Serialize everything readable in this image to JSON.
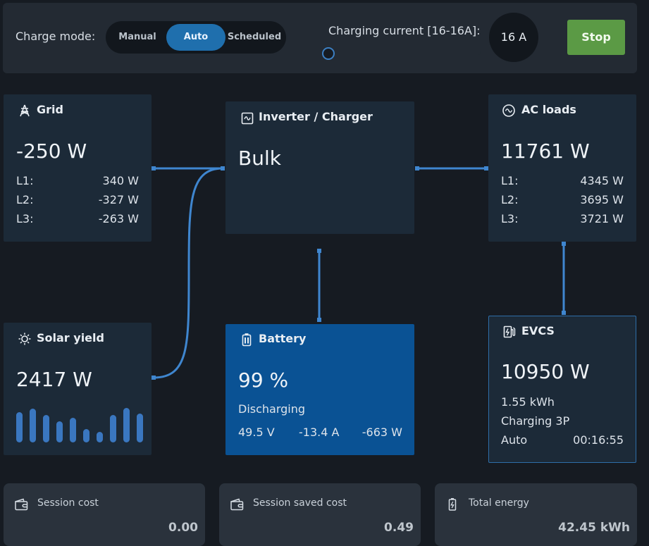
{
  "header": {
    "charge_mode_label": "Charge mode:",
    "modes": [
      "Manual",
      "Auto",
      "Scheduled"
    ],
    "active_mode": "Auto",
    "charging_current_label": "Charging current [16-16A]:",
    "slider_value_fraction": 0,
    "current_value": "16 A",
    "stop_label": "Stop"
  },
  "grid": {
    "title": "Grid",
    "power": "-250 W",
    "phases": [
      {
        "label": "L1:",
        "value": "340 W"
      },
      {
        "label": "L2:",
        "value": "-327 W"
      },
      {
        "label": "L3:",
        "value": "-263 W"
      }
    ]
  },
  "inverter": {
    "title": "Inverter / Charger",
    "state": "Bulk"
  },
  "ac_loads": {
    "title": "AC loads",
    "power": "11761 W",
    "phases": [
      {
        "label": "L1:",
        "value": "4345 W"
      },
      {
        "label": "L2:",
        "value": "3695 W"
      },
      {
        "label": "L3:",
        "value": "3721 W"
      }
    ]
  },
  "solar": {
    "title": "Solar yield",
    "power": "2417 W",
    "bar_levels": [
      0.85,
      0.95,
      0.78,
      0.6,
      0.7,
      0.38,
      0.3,
      0.78,
      0.97,
      0.82
    ]
  },
  "battery": {
    "title": "Battery",
    "soc": "99 %",
    "state": "Discharging",
    "voltage": "49.5 V",
    "current": "-13.4 A",
    "power": "-663 W"
  },
  "evcs": {
    "title": "EVCS",
    "power": "10950 W",
    "energy": "1.55 kWh",
    "status": "Charging 3P",
    "mode": "Auto",
    "time": "00:16:55"
  },
  "cards": [
    {
      "label": "Session cost",
      "value": "0.00"
    },
    {
      "label": "Session saved cost",
      "value": "0.49"
    },
    {
      "label": "Total energy",
      "value": "42.45 kWh"
    }
  ],
  "colors": {
    "background": "#161b22",
    "tile": "#1c2a38",
    "battery": "#0a5294",
    "accent": "#3f86cf",
    "stop": "#5b9a45",
    "active_mode": "#1f6fad"
  }
}
